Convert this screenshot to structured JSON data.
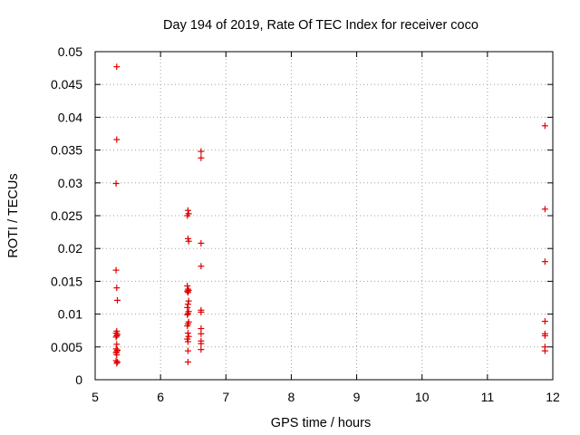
{
  "chart_data": {
    "type": "scatter",
    "title": "Day 194 of 2019, Rate Of TEC Index for receiver coco",
    "xlabel": "GPS time / hours",
    "ylabel": "ROTI / TECUs",
    "xlim": [
      5,
      12
    ],
    "ylim": [
      0,
      0.05
    ],
    "grid": true,
    "marker": "+",
    "color": "#e00000",
    "xticks": [
      "5",
      "6",
      "7",
      "8",
      "9",
      "10",
      "11",
      "12"
    ],
    "yticks": [
      "0",
      "0.005",
      "0.01",
      "0.015",
      "0.02",
      "0.025",
      "0.03",
      "0.035",
      "0.04",
      "0.045",
      "0.05"
    ],
    "series": [
      {
        "name": "ROTI",
        "points": [
          [
            5.33,
            0.0477
          ],
          [
            5.33,
            0.0366
          ],
          [
            5.32,
            0.0299
          ],
          [
            5.32,
            0.0167
          ],
          [
            5.33,
            0.014
          ],
          [
            5.34,
            0.0121
          ],
          [
            5.33,
            0.0074
          ],
          [
            5.32,
            0.0071
          ],
          [
            5.34,
            0.0069
          ],
          [
            5.33,
            0.0067
          ],
          [
            5.32,
            0.0065
          ],
          [
            5.33,
            0.0054
          ],
          [
            5.32,
            0.0047
          ],
          [
            5.34,
            0.0045
          ],
          [
            5.33,
            0.0043
          ],
          [
            5.32,
            0.0041
          ],
          [
            5.33,
            0.0038
          ],
          [
            5.32,
            0.0029
          ],
          [
            5.34,
            0.0027
          ],
          [
            5.33,
            0.0025
          ],
          [
            6.42,
            0.0258
          ],
          [
            6.43,
            0.0253
          ],
          [
            6.41,
            0.025
          ],
          [
            6.42,
            0.0215
          ],
          [
            6.43,
            0.0211
          ],
          [
            6.41,
            0.0143
          ],
          [
            6.42,
            0.0138
          ],
          [
            6.43,
            0.0136
          ],
          [
            6.41,
            0.0135
          ],
          [
            6.42,
            0.0133
          ],
          [
            6.43,
            0.012
          ],
          [
            6.42,
            0.0115
          ],
          [
            6.41,
            0.011
          ],
          [
            6.43,
            0.0104
          ],
          [
            6.42,
            0.0101
          ],
          [
            6.41,
            0.0099
          ],
          [
            6.43,
            0.0088
          ],
          [
            6.42,
            0.0085
          ],
          [
            6.41,
            0.0082
          ],
          [
            6.42,
            0.0071
          ],
          [
            6.43,
            0.0066
          ],
          [
            6.41,
            0.0062
          ],
          [
            6.42,
            0.0058
          ],
          [
            6.42,
            0.0044
          ],
          [
            6.42,
            0.0027
          ],
          [
            6.62,
            0.0348
          ],
          [
            6.62,
            0.0338
          ],
          [
            6.62,
            0.0208
          ],
          [
            6.62,
            0.0173
          ],
          [
            6.62,
            0.0106
          ],
          [
            6.62,
            0.0103
          ],
          [
            6.62,
            0.0078
          ],
          [
            6.62,
            0.007
          ],
          [
            6.62,
            0.0059
          ],
          [
            6.62,
            0.0055
          ],
          [
            6.62,
            0.0046
          ],
          [
            11.88,
            0.0387
          ],
          [
            11.88,
            0.026
          ],
          [
            11.88,
            0.018
          ],
          [
            11.88,
            0.0089
          ],
          [
            11.88,
            0.007
          ],
          [
            11.88,
            0.0067
          ],
          [
            11.88,
            0.005
          ],
          [
            11.88,
            0.0044
          ]
        ]
      }
    ]
  }
}
